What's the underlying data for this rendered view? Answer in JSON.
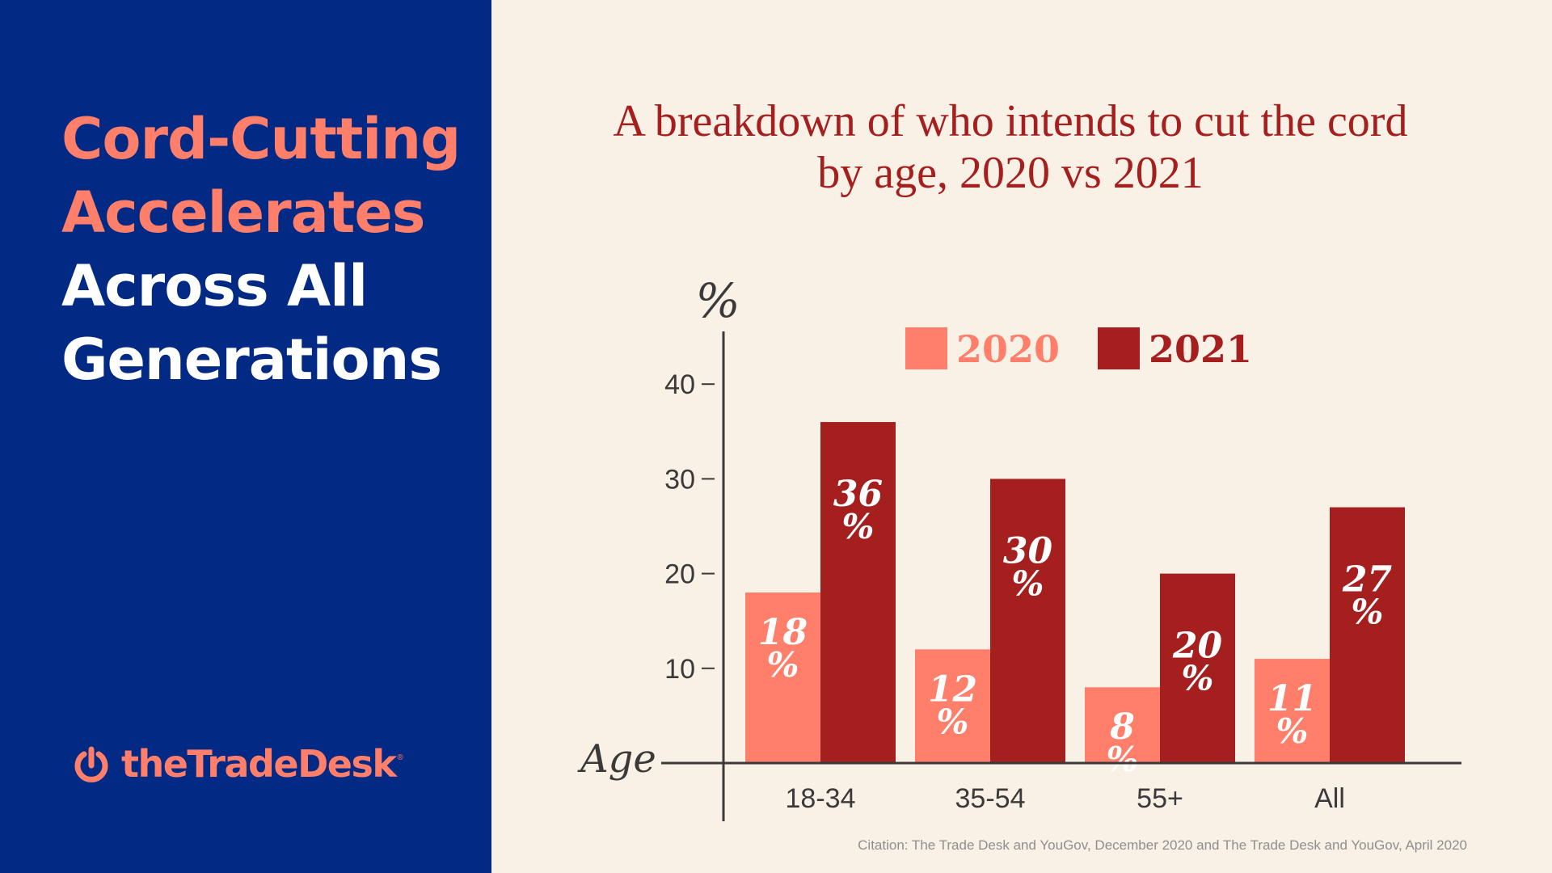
{
  "headline": {
    "line1": "Cord-Cutting",
    "line2": "Accelerates",
    "line3": "Across All",
    "line4": "Generations"
  },
  "brand": {
    "logo_text": "theTradeDesk",
    "trademark": "®"
  },
  "colors": {
    "panel_bg": "#022a85",
    "accent": "#ff7f6b",
    "series_2020": "#ff7f6b",
    "series_2021": "#a51f1f",
    "title": "#a51f1f",
    "axis": "#3a3a3a",
    "page_bg": "#f9f0e6",
    "headline_white": "#ffffff"
  },
  "chart_data": {
    "type": "bar",
    "title": "A breakdown of who intends to cut the cord by age, 2020 vs 2021",
    "title_line1": "A breakdown of who intends to cut the cord",
    "title_line2": "by age, 2020 vs 2021",
    "categories": [
      "18-34",
      "35-54",
      "55+",
      "All"
    ],
    "series": [
      {
        "name": "2020",
        "values": [
          18,
          12,
          8,
          11
        ],
        "labels": [
          "18",
          "12",
          "8",
          "11"
        ]
      },
      {
        "name": "2021",
        "values": [
          36,
          30,
          20,
          27
        ],
        "labels": [
          "36",
          "30",
          "20",
          "27"
        ]
      }
    ],
    "percent_sign": "%",
    "ylabel": "%",
    "xlabel": "Age",
    "yticks": [
      10,
      20,
      30,
      40
    ],
    "ylim": [
      0,
      45
    ],
    "legend_position": "top",
    "grid": false
  },
  "citation": "Citation: The Trade Desk and YouGov, December 2020 and The Trade Desk and YouGov, April 2020"
}
